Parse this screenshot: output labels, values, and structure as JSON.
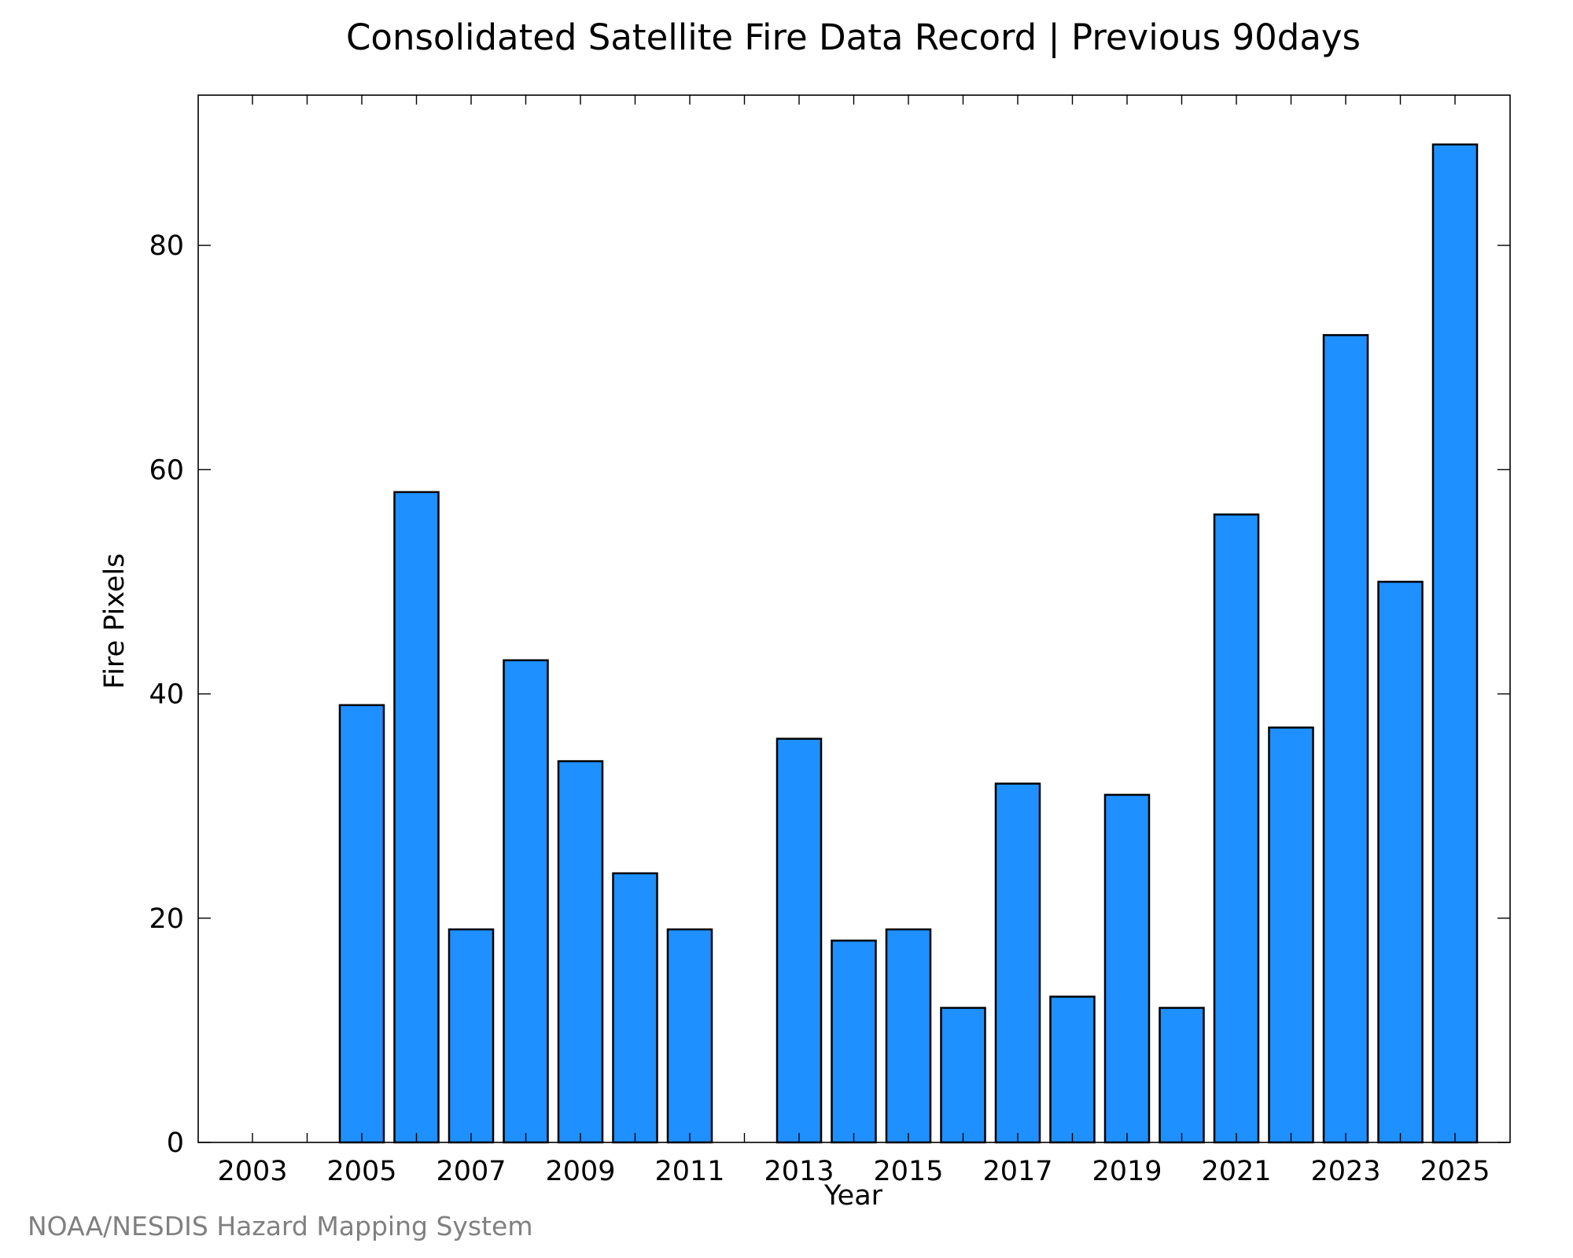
{
  "footer": "NOAA/NESDIS Hazard Mapping System",
  "chart_data": {
    "type": "bar",
    "title": "Consolidated Satellite Fire Data Record | Previous 90days",
    "xlabel": "Year",
    "ylabel": "Fire Pixels",
    "categories": [
      "2003",
      "2004",
      "2005",
      "2006",
      "2007",
      "2008",
      "2009",
      "2010",
      "2011",
      "2012",
      "2013",
      "2014",
      "2015",
      "2016",
      "2017",
      "2018",
      "2019",
      "2020",
      "2021",
      "2022",
      "2023",
      "2024",
      "2025"
    ],
    "x_tick_labels": [
      "2003",
      "2005",
      "2007",
      "2009",
      "2011",
      "2013",
      "2015",
      "2017",
      "2019",
      "2021",
      "2023",
      "2025"
    ],
    "y_tick_labels": [
      "0",
      "20",
      "40",
      "60",
      "80"
    ],
    "values": [
      0,
      0,
      39,
      58,
      19,
      43,
      34,
      24,
      19,
      0,
      36,
      18,
      19,
      12,
      32,
      13,
      31,
      12,
      56,
      37,
      72,
      50,
      89
    ],
    "ylim": [
      0,
      93.4
    ],
    "yticks": [
      0,
      20,
      40,
      60,
      80
    ],
    "grid": false,
    "bar_color": "#1e90ff",
    "edge_color": "#000000"
  }
}
